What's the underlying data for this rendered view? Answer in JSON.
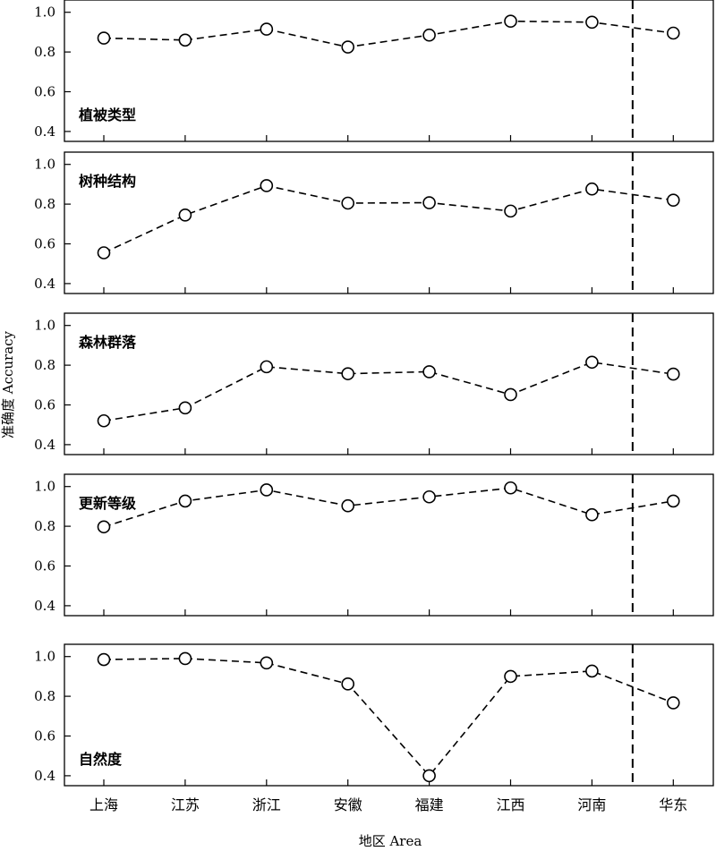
{
  "chart_data": {
    "type": "line",
    "xlabel": "地区 Area",
    "ylabel": "准确度 Accuracy",
    "categories": [
      "上海",
      "江苏",
      "浙江",
      "安徽",
      "福建",
      "江西",
      "河南",
      "华东"
    ],
    "ylim": [
      0.35,
      1.05
    ],
    "yticks": [
      0.4,
      0.6,
      0.8,
      1.0
    ],
    "ytick_labels": [
      "0.4",
      "0.6",
      "0.8",
      "1.0"
    ],
    "separator_after_category": "河南",
    "line_style": "dashed",
    "marker": "open-circle",
    "color": "#000000",
    "panels": [
      {
        "label": "植被类型",
        "label_position": "bottom-left",
        "values": [
          0.87,
          0.86,
          0.915,
          0.825,
          0.885,
          0.955,
          0.95,
          0.895
        ]
      },
      {
        "label": "树种结构",
        "label_position": "top-left",
        "values": [
          0.555,
          0.745,
          0.893,
          0.805,
          0.807,
          0.765,
          0.876,
          0.82
        ]
      },
      {
        "label": "森林群落",
        "label_position": "top-left",
        "values": [
          0.52,
          0.585,
          0.792,
          0.757,
          0.767,
          0.652,
          0.815,
          0.755
        ]
      },
      {
        "label": "更新等级",
        "label_position": "top-left",
        "values": [
          0.797,
          0.927,
          0.983,
          0.903,
          0.948,
          0.993,
          0.858,
          0.927
        ]
      },
      {
        "label": "自然度",
        "label_position": "bottom-left",
        "values": [
          0.985,
          0.99,
          0.968,
          0.862,
          0.4,
          0.9,
          0.927,
          0.767
        ]
      }
    ]
  }
}
